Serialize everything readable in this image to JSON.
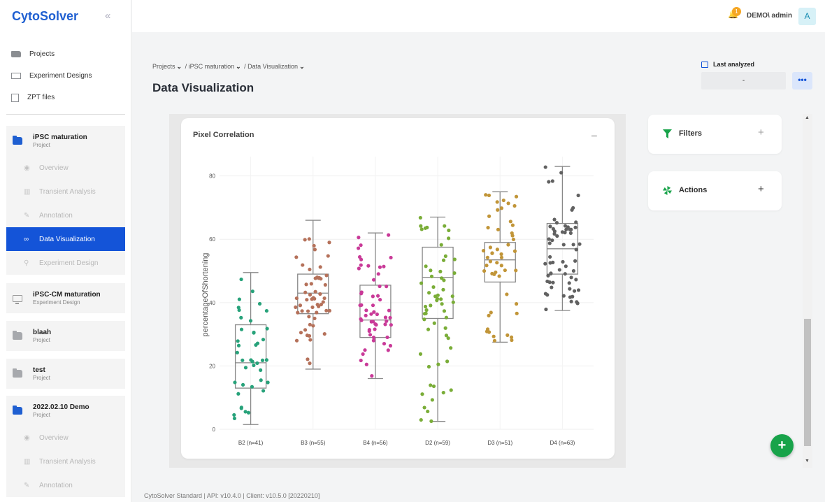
{
  "sidebar": {
    "brand": "CytoSolver",
    "collapse_icon": "«",
    "top_items": [
      {
        "label": "Projects",
        "icon": "folder-icon"
      },
      {
        "label": "Experiment Designs",
        "icon": "monitor-icon"
      },
      {
        "label": "ZPT files",
        "icon": "file-icon"
      }
    ],
    "groups": [
      {
        "title": "iPSC maturation",
        "type": "Project",
        "icon": "folder-blue",
        "children": [
          {
            "label": "Overview",
            "icon": "◉"
          },
          {
            "label": "Transient Analysis",
            "icon": "▥"
          },
          {
            "label": "Annotation",
            "icon": "✎"
          },
          {
            "label": "Data Visualization",
            "icon": "∞",
            "active": true
          },
          {
            "label": "Experiment Design",
            "icon": "⚲"
          }
        ]
      },
      {
        "title": "iPSC-CM maturation",
        "type": "Experiment Design",
        "icon": "monitor"
      },
      {
        "title": "blaah",
        "type": "Project",
        "icon": "folder-grey"
      },
      {
        "title": "test",
        "type": "Project",
        "icon": "folder-grey"
      },
      {
        "title": "2022.02.10 Demo",
        "type": "Project",
        "icon": "folder-blue",
        "children": [
          {
            "label": "Overview",
            "icon": "◉"
          },
          {
            "label": "Transient Analysis",
            "icon": "▥"
          },
          {
            "label": "Annotation",
            "icon": "✎"
          }
        ]
      }
    ]
  },
  "topbar": {
    "notification_count": "1",
    "user": "DEMO\\ admin",
    "avatar": "A"
  },
  "header": {
    "breadcrumb": [
      "Projects",
      "/ iPSC maturation",
      "/ Data Visualization"
    ],
    "title": "Data Visualization",
    "last_analyzed_label": "Last analyzed",
    "last_analyzed_value": "-",
    "more_label": "•••"
  },
  "card": {
    "title": "Pixel Correlation",
    "minimize": "–"
  },
  "chart_data": {
    "type": "box",
    "title": "",
    "ylabel": "percentageOfShortening",
    "ylim": [
      0,
      85
    ],
    "yticks": [
      0,
      20,
      40,
      60,
      80
    ],
    "categories": [
      "B2 (n=41)",
      "B3 (n=55)",
      "B4 (n=56)",
      "D2 (n=59)",
      "D3 (n=51)",
      "D4 (n=63)"
    ],
    "colors": [
      "#27a27a",
      "#b5715a",
      "#c93a98",
      "#7aad38",
      "#c19538",
      "#616161"
    ],
    "boxes": [
      {
        "min": 1.5,
        "q1": 13,
        "median": 21,
        "q3": 33,
        "max": 49.5
      },
      {
        "min": 19,
        "q1": 36.5,
        "median": 43,
        "q3": 49,
        "max": 66
      },
      {
        "min": 16,
        "q1": 29,
        "median": 34.5,
        "q3": 45.5,
        "max": 62
      },
      {
        "min": 2.5,
        "q1": 35,
        "median": 48,
        "q3": 57.5,
        "max": 67
      },
      {
        "min": 27.5,
        "q1": 46.5,
        "median": 53.5,
        "q3": 59,
        "max": 75
      },
      {
        "min": 37.5,
        "q1": 49,
        "median": 57,
        "q3": 65,
        "max": 83
      }
    ],
    "grid": true
  },
  "panels": {
    "filters": {
      "label": "Filters",
      "plus": "+"
    },
    "actions": {
      "label": "Actions",
      "plus": "+"
    }
  },
  "fab": "+",
  "footer": "CytoSolver Standard | API: v10.4.0 | Client: v10.5.0 [20220210]"
}
